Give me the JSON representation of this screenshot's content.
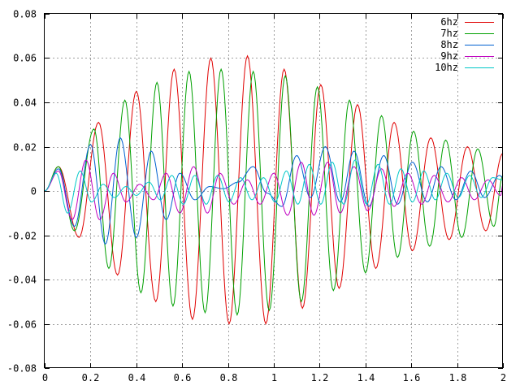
{
  "chart_data": {
    "type": "line",
    "title": "",
    "xlabel": "",
    "ylabel": "",
    "xlim": [
      0,
      2
    ],
    "ylim": [
      -0.08,
      0.08
    ],
    "grid": true,
    "legend_position": "top-right",
    "x_ticks": [
      0,
      0.2,
      0.4,
      0.6,
      0.8,
      1,
      1.2,
      1.4,
      1.6,
      1.8,
      2
    ],
    "x_tick_labels": [
      "0",
      "0.2",
      "0.4",
      "0.6",
      "0.8",
      "1",
      "1.2",
      "1.4",
      "1.6",
      "1.8",
      "2"
    ],
    "y_ticks": [
      -0.08,
      -0.06,
      -0.04,
      -0.02,
      0,
      0.02,
      0.04,
      0.06,
      0.08
    ],
    "y_tick_labels": [
      "-0.08",
      "-0.06",
      "-0.04",
      "-0.02",
      "0",
      "0.02",
      "0.04",
      "0.06",
      "0.08"
    ],
    "series": [
      {
        "name": "6hz",
        "color": "#e00000",
        "freq_hz": 6,
        "x": [
          0,
          0.06,
          0.15,
          0.235,
          0.318,
          0.4,
          0.485,
          0.565,
          0.645,
          0.725,
          0.805,
          0.885,
          0.965,
          1.045,
          1.125,
          1.205,
          1.285,
          1.365,
          1.445,
          1.525,
          1.605,
          1.685,
          1.765,
          1.845,
          1.925,
          2.0
        ],
        "y": [
          0,
          0.011,
          -0.021,
          0.031,
          -0.038,
          0.045,
          -0.05,
          0.055,
          -0.058,
          0.06,
          -0.06,
          0.061,
          -0.06,
          0.055,
          -0.053,
          0.048,
          -0.044,
          0.039,
          -0.035,
          0.031,
          -0.027,
          0.024,
          -0.022,
          0.02,
          -0.018,
          0.017
        ]
      },
      {
        "name": "7hz",
        "color": "#00a000",
        "freq_hz": 7,
        "x": [
          0,
          0.06,
          0.13,
          0.215,
          0.28,
          0.35,
          0.42,
          0.49,
          0.56,
          0.63,
          0.7,
          0.77,
          0.84,
          0.91,
          0.98,
          1.05,
          1.12,
          1.19,
          1.26,
          1.33,
          1.4,
          1.47,
          1.54,
          1.61,
          1.68,
          1.75,
          1.82,
          1.89,
          1.96,
          2.0
        ],
        "y": [
          0,
          0.011,
          -0.018,
          0.028,
          -0.035,
          0.041,
          -0.046,
          0.049,
          -0.052,
          0.054,
          -0.055,
          0.055,
          -0.056,
          0.054,
          -0.054,
          0.052,
          -0.05,
          0.047,
          -0.045,
          0.041,
          -0.037,
          0.034,
          -0.03,
          0.027,
          -0.025,
          0.023,
          -0.021,
          0.019,
          -0.016,
          0.007
        ]
      },
      {
        "name": "8hz",
        "color": "#0060d0",
        "freq_hz": 8,
        "x": [
          0,
          0.06,
          0.13,
          0.2,
          0.265,
          0.33,
          0.4,
          0.465,
          0.53,
          0.59,
          0.655,
          0.72,
          0.78,
          0.845,
          0.91,
          0.97,
          1.035,
          1.1,
          1.16,
          1.225,
          1.29,
          1.35,
          1.415,
          1.48,
          1.54,
          1.605,
          1.67,
          1.73,
          1.795,
          1.86,
          1.92,
          1.985,
          2.0
        ],
        "y": [
          0,
          0.01,
          -0.016,
          0.021,
          -0.024,
          0.024,
          -0.021,
          0.018,
          -0.013,
          0.008,
          -0.004,
          0.002,
          0.001,
          0.004,
          0.011,
          -0.001,
          -0.007,
          0.016,
          -0.003,
          0.02,
          -0.005,
          0.018,
          -0.007,
          0.016,
          -0.006,
          0.013,
          -0.005,
          0.011,
          -0.004,
          0.009,
          -0.003,
          0.007,
          0.006
        ]
      },
      {
        "name": "9hz",
        "color": "#c000c0",
        "freq_hz": 9,
        "x": [
          0,
          0.06,
          0.12,
          0.18,
          0.24,
          0.3,
          0.355,
          0.415,
          0.475,
          0.53,
          0.59,
          0.65,
          0.71,
          0.765,
          0.825,
          0.885,
          0.94,
          1.0,
          1.06,
          1.12,
          1.175,
          1.235,
          1.29,
          1.35,
          1.41,
          1.47,
          1.525,
          1.585,
          1.645,
          1.7,
          1.76,
          1.82,
          1.875,
          1.935,
          1.99,
          2.0
        ],
        "y": [
          0,
          0.009,
          -0.013,
          0.014,
          -0.013,
          0.008,
          -0.005,
          0.003,
          -0.004,
          0.008,
          -0.01,
          0.011,
          -0.01,
          0.008,
          -0.006,
          0.005,
          -0.006,
          0.008,
          -0.011,
          0.013,
          -0.011,
          0.013,
          -0.01,
          0.011,
          -0.009,
          0.01,
          -0.007,
          0.008,
          -0.006,
          0.007,
          -0.005,
          0.006,
          -0.004,
          0.005,
          -0.002,
          0.003
        ]
      },
      {
        "name": "10hz",
        "color": "#00c8c8",
        "freq_hz": 10,
        "x": [
          0,
          0.05,
          0.1,
          0.155,
          0.205,
          0.255,
          0.305,
          0.355,
          0.4,
          0.455,
          0.505,
          0.555,
          0.605,
          0.655,
          0.705,
          0.755,
          0.805,
          0.855,
          0.905,
          0.955,
          1.005,
          1.055,
          1.105,
          1.155,
          1.205,
          1.255,
          1.305,
          1.355,
          1.405,
          1.455,
          1.505,
          1.555,
          1.605,
          1.655,
          1.705,
          1.755,
          1.805,
          1.855,
          1.905,
          1.955,
          2.0
        ],
        "y": [
          0,
          0.008,
          -0.01,
          0.009,
          -0.005,
          0.003,
          -0.003,
          0.002,
          -0.002,
          0.004,
          -0.004,
          0.007,
          -0.006,
          0.007,
          -0.006,
          0.007,
          -0.005,
          0.006,
          -0.004,
          0.006,
          -0.005,
          0.009,
          -0.006,
          0.012,
          -0.006,
          0.013,
          -0.006,
          0.014,
          -0.006,
          0.012,
          -0.006,
          0.01,
          -0.005,
          0.009,
          -0.004,
          0.008,
          -0.003,
          0.007,
          -0.003,
          0.006,
          0.005
        ]
      }
    ]
  }
}
